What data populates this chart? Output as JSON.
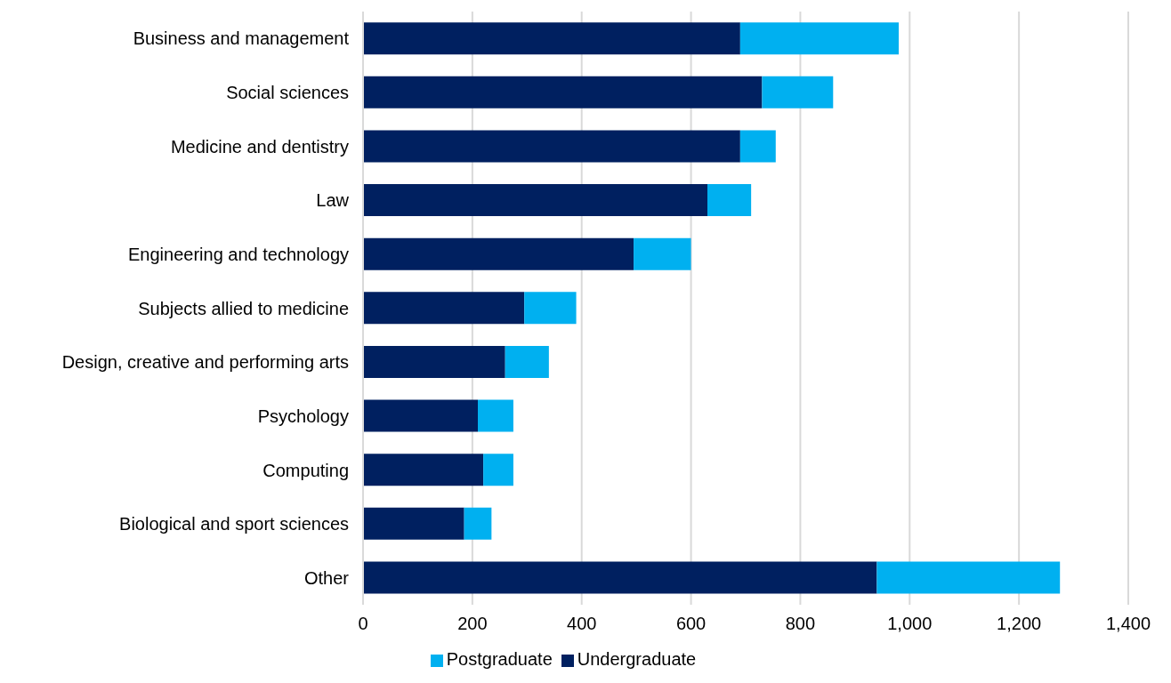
{
  "chart_data": {
    "type": "bar",
    "orientation": "horizontal",
    "stacked": true,
    "categories": [
      "Business and management",
      "Social sciences",
      "Medicine and dentistry",
      "Law",
      "Engineering and technology",
      "Subjects allied to medicine",
      "Design, creative and performing arts",
      "Psychology",
      "Computing",
      "Biological and sport sciences",
      "Other"
    ],
    "series": [
      {
        "name": "Undergraduate",
        "color": "#002060",
        "values": [
          690,
          730,
          690,
          630,
          495,
          295,
          260,
          210,
          220,
          185,
          940
        ]
      },
      {
        "name": "Postgraduate",
        "color": "#00b0f0",
        "values": [
          290,
          130,
          65,
          80,
          105,
          95,
          80,
          65,
          55,
          50,
          335
        ]
      }
    ],
    "xlim": [
      0,
      1400
    ],
    "xticks": [
      0,
      200,
      400,
      600,
      800,
      {
        "value": 1000,
        "label": "1,000"
      },
      {
        "value": 1200,
        "label": "1,200"
      },
      {
        "value": 1400,
        "label": "1,400"
      }
    ],
    "grid": "x",
    "legend": "bottom"
  }
}
